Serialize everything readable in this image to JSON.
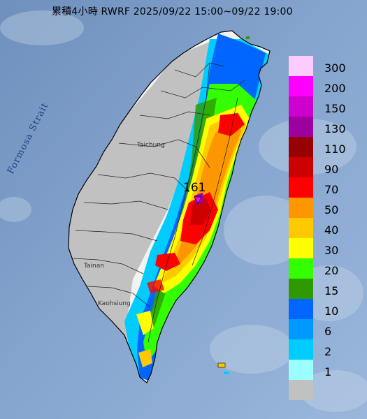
{
  "title": "累積4小時 RWRF 2025/09/22 15:00~09/22 19:00",
  "strait_label": "Formosa Strait",
  "city_labels": {
    "taichung": "Taichung",
    "tainan": "Tainan",
    "kaohsiung": "Kaohsiung"
  },
  "max_value_label": "161",
  "legend": [
    {
      "label": "300",
      "color": "#fecbfd"
    },
    {
      "label": "200",
      "color": "#fe00fe"
    },
    {
      "label": "150",
      "color": "#cd00cd"
    },
    {
      "label": "130",
      "color": "#9c009e"
    },
    {
      "label": "110",
      "color": "#990000"
    },
    {
      "label": "90",
      "color": "#cc0000"
    },
    {
      "label": "70",
      "color": "#ff0000"
    },
    {
      "label": "50",
      "color": "#fd9600"
    },
    {
      "label": "40",
      "color": "#ffc900"
    },
    {
      "label": "30",
      "color": "#ffff00"
    },
    {
      "label": "20",
      "color": "#33ff00"
    },
    {
      "label": "15",
      "color": "#2f9a00"
    },
    {
      "label": "10",
      "color": "#0066ff"
    },
    {
      "label": "6",
      "color": "#0099ff"
    },
    {
      "label": "2",
      "color": "#00ccff"
    },
    {
      "label": "1",
      "color": "#99ffff"
    },
    {
      "label": "",
      "color": "#c1c1c1"
    }
  ]
}
